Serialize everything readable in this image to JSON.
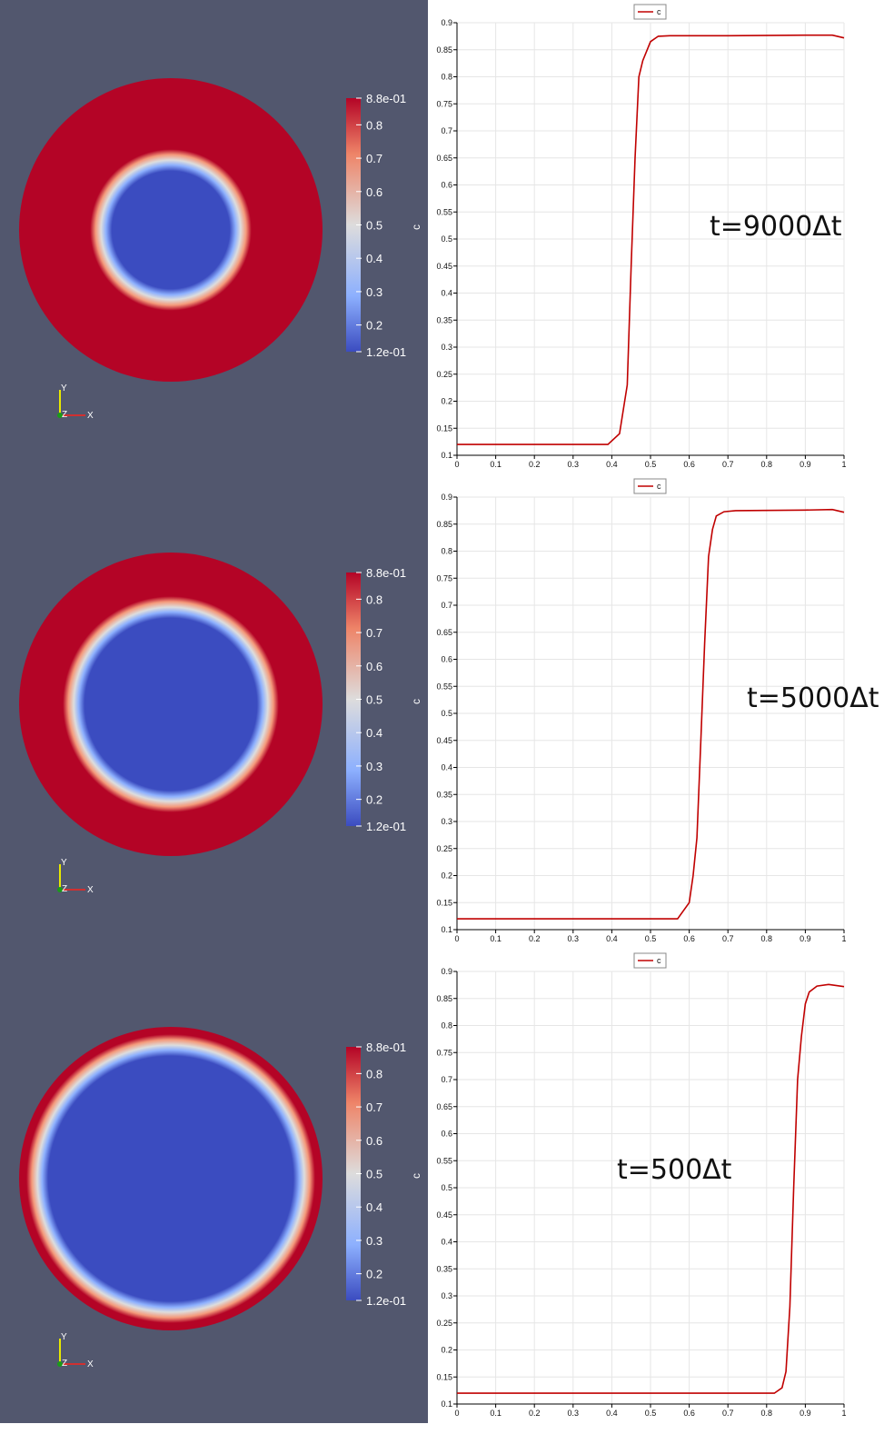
{
  "colors": {
    "background": "#52576e",
    "inside": "#3b4cc0",
    "outside": "#b40426",
    "curve": "#c00000",
    "grid": "#e6e6e6"
  },
  "colorbar": {
    "title": "c",
    "labels": [
      "8.8e-01",
      "0.8",
      "0.7",
      "0.6",
      "0.5",
      "0.4",
      "0.3",
      "0.2",
      "1.2e-01"
    ],
    "min": 0.12,
    "max": 0.88
  },
  "axes_triad": {
    "x": "X",
    "y": "Y",
    "z": "Z"
  },
  "chart_data": [
    {
      "type": "line",
      "annotation": "t=9000Δt",
      "legend": "c",
      "legend_position": "top-center",
      "grid": true,
      "xlim": [
        0,
        1
      ],
      "ylim": [
        0.1,
        0.9
      ],
      "xticks": [
        "0",
        "0.1",
        "0.2",
        "0.3",
        "0.4",
        "0.5",
        "0.6",
        "0.7",
        "0.8",
        "0.9",
        "1"
      ],
      "yticks": [
        "0.1",
        "0.15",
        "0.2",
        "0.25",
        "0.3",
        "0.35",
        "0.4",
        "0.45",
        "0.5",
        "0.55",
        "0.6",
        "0.65",
        "0.7",
        "0.75",
        "0.8",
        "0.85",
        "0.9"
      ],
      "inner_radius_fraction": 0.46,
      "series": [
        {
          "name": "c",
          "x": [
            0,
            0.39,
            0.42,
            0.44,
            0.45,
            0.46,
            0.47,
            0.48,
            0.5,
            0.52,
            0.55,
            0.7,
            0.9,
            0.97,
            1.0
          ],
          "y": [
            0.12,
            0.12,
            0.14,
            0.23,
            0.45,
            0.65,
            0.8,
            0.83,
            0.865,
            0.875,
            0.876,
            0.876,
            0.877,
            0.877,
            0.872
          ]
        }
      ]
    },
    {
      "type": "line",
      "annotation": "t=5000Δt",
      "legend": "c",
      "legend_position": "top-center",
      "grid": true,
      "xlim": [
        0,
        1
      ],
      "ylim": [
        0.1,
        0.9
      ],
      "xticks": [
        "0",
        "0.1",
        "0.2",
        "0.3",
        "0.4",
        "0.5",
        "0.6",
        "0.7",
        "0.8",
        "0.9",
        "1"
      ],
      "yticks": [
        "0.1",
        "0.15",
        "0.2",
        "0.25",
        "0.3",
        "0.35",
        "0.4",
        "0.45",
        "0.5",
        "0.55",
        "0.6",
        "0.65",
        "0.7",
        "0.75",
        "0.8",
        "0.85",
        "0.9"
      ],
      "inner_radius_fraction": 0.64,
      "series": [
        {
          "name": "c",
          "x": [
            0,
            0.57,
            0.6,
            0.61,
            0.62,
            0.63,
            0.64,
            0.65,
            0.66,
            0.67,
            0.69,
            0.72,
            0.9,
            0.97,
            1.0
          ],
          "y": [
            0.12,
            0.12,
            0.15,
            0.2,
            0.27,
            0.45,
            0.63,
            0.79,
            0.84,
            0.865,
            0.873,
            0.875,
            0.876,
            0.877,
            0.872
          ]
        }
      ]
    },
    {
      "type": "line",
      "annotation": "t=500Δt",
      "legend": "c",
      "legend_position": "top-center",
      "grid": true,
      "xlim": [
        0,
        1
      ],
      "ylim": [
        0.1,
        0.9
      ],
      "xticks": [
        "0",
        "0.1",
        "0.2",
        "0.3",
        "0.4",
        "0.5",
        "0.6",
        "0.7",
        "0.8",
        "0.9",
        "1"
      ],
      "yticks": [
        "0.1",
        "0.15",
        "0.2",
        "0.25",
        "0.3",
        "0.35",
        "0.4",
        "0.45",
        "0.5",
        "0.55",
        "0.6",
        "0.65",
        "0.7",
        "0.75",
        "0.8",
        "0.85",
        "0.9"
      ],
      "inner_radius_fraction": 0.88,
      "series": [
        {
          "name": "c",
          "x": [
            0,
            0.82,
            0.84,
            0.85,
            0.86,
            0.87,
            0.88,
            0.89,
            0.9,
            0.91,
            0.93,
            0.96,
            1.0
          ],
          "y": [
            0.12,
            0.12,
            0.13,
            0.16,
            0.28,
            0.5,
            0.7,
            0.78,
            0.84,
            0.862,
            0.873,
            0.876,
            0.872
          ]
        }
      ]
    }
  ]
}
